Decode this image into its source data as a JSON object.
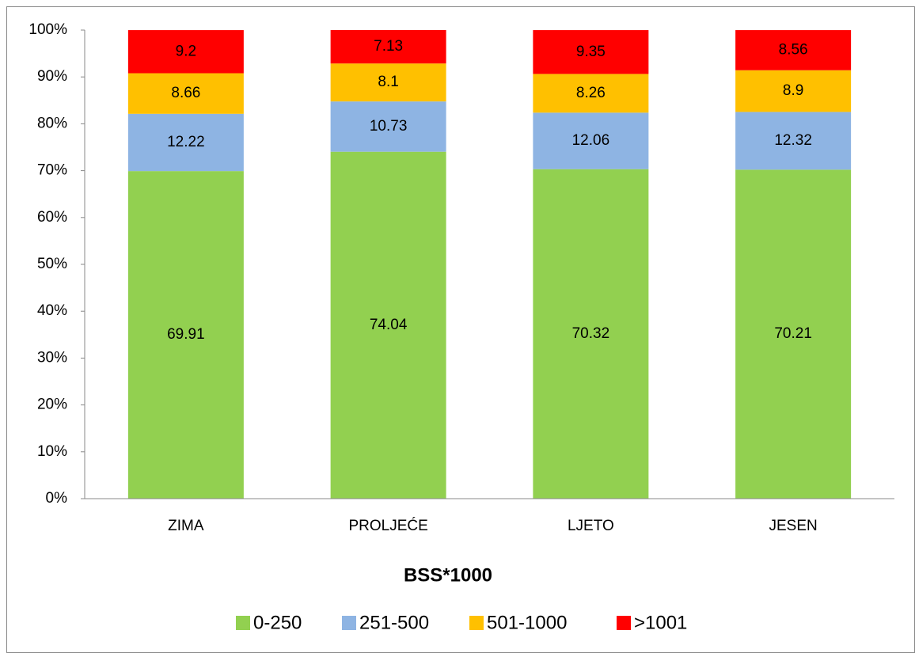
{
  "chart_data": {
    "type": "bar",
    "stacked": true,
    "x_label": "BSS*1000",
    "categories": [
      "ZIMA",
      "PROLJEĆE",
      "LJETO",
      "JESEN"
    ],
    "series": [
      {
        "name": "0-250",
        "color": "#92d050",
        "values": [
          69.91,
          74.04,
          70.32,
          70.21
        ]
      },
      {
        "name": "251-500",
        "color": "#8eb4e3",
        "values": [
          12.22,
          10.73,
          12.06,
          12.32
        ]
      },
      {
        "name": "501-1000",
        "color": "#ffc000",
        "values": [
          8.66,
          8.1,
          8.26,
          8.9
        ]
      },
      {
        "name": ">1001",
        "color": "#ff0000",
        "values": [
          9.2,
          7.13,
          9.35,
          8.56
        ]
      }
    ],
    "ylim": [
      0,
      100
    ],
    "yticks": [
      {
        "value": 0,
        "label": "0%"
      },
      {
        "value": 10,
        "label": "10%"
      },
      {
        "value": 20,
        "label": "20%"
      },
      {
        "value": 30,
        "label": "30%"
      },
      {
        "value": 40,
        "label": "40%"
      },
      {
        "value": 50,
        "label": "50%"
      },
      {
        "value": 60,
        "label": "60%"
      },
      {
        "value": 70,
        "label": "70%"
      },
      {
        "value": 80,
        "label": "80%"
      },
      {
        "value": 90,
        "label": "90%"
      },
      {
        "value": 100,
        "label": "100%"
      }
    ],
    "grid": false,
    "legend": "bottom"
  }
}
